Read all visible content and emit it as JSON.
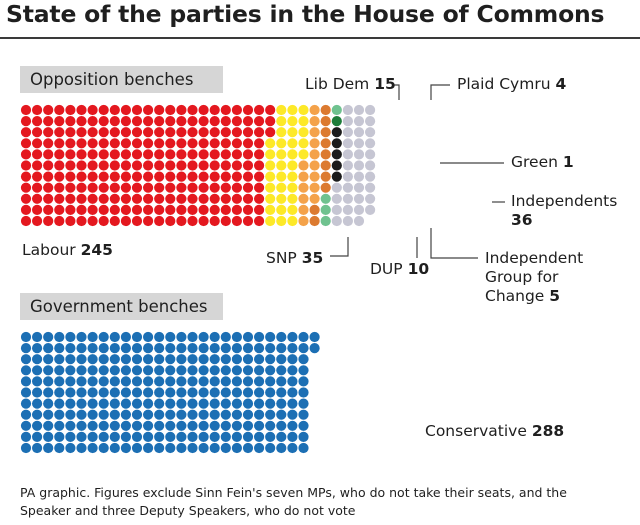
{
  "title": "State of the parties in the House of Commons",
  "sections": {
    "opposition": "Opposition benches",
    "government": "Government benches"
  },
  "source_note": "PA graphic. Figures exclude Sinn Fein's seven MPs, who do not take their seats, and the Speaker and three Deputy Speakers, who do not vote",
  "chart_data": {
    "type": "waffle",
    "title": "State of the parties in the House of Commons",
    "groups": [
      {
        "name": "Opposition benches",
        "series": [
          {
            "name": "Labour",
            "value": 245,
            "color": "#e4181f"
          },
          {
            "name": "SNP",
            "value": 35,
            "color": "#fde928"
          },
          {
            "name": "Lib Dem",
            "value": 15,
            "color": "#f4a24a"
          },
          {
            "name": "DUP",
            "value": 10,
            "color": "#dc7a30"
          },
          {
            "name": "Plaid Cymru",
            "value": 4,
            "color": "#6fc28f"
          },
          {
            "name": "Green",
            "value": 1,
            "color": "#1e7d3a"
          },
          {
            "name": "Independent Group for Change",
            "value": 5,
            "color": "#1b1b1b"
          },
          {
            "name": "Independents",
            "value": 36,
            "color": "#c6c6d3"
          }
        ]
      },
      {
        "name": "Government benches",
        "series": [
          {
            "name": "Conservative",
            "value": 288,
            "color": "#1c6fb4"
          }
        ]
      }
    ]
  },
  "labels": {
    "labour": {
      "name": "Labour",
      "value": "245"
    },
    "snp": {
      "name": "SNP",
      "value": "35"
    },
    "libdem": {
      "name": "Lib Dem",
      "value": "15"
    },
    "dup": {
      "name": "DUP",
      "value": "10"
    },
    "plaid": {
      "name": "Plaid Cymru",
      "value": "4"
    },
    "green": {
      "name": "Green",
      "value": "1"
    },
    "independents": {
      "name": "Independents",
      "value": "36"
    },
    "tig_line1": "Independent",
    "tig_line2": "Group for",
    "tig_line3": "Change",
    "tig_value": "5",
    "conservative": {
      "name": "Conservative",
      "value": "288"
    }
  }
}
